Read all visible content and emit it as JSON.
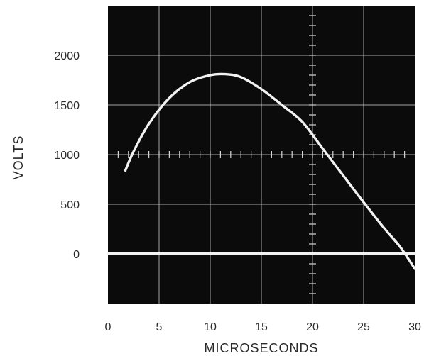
{
  "chart_data": {
    "type": "line",
    "xlabel": "MICROSECONDS",
    "ylabel": "VOLTS",
    "xlim": [
      0,
      30
    ],
    "ylim": [
      -500,
      2500
    ],
    "x_ticks": [
      0,
      5,
      10,
      15,
      20,
      25,
      30
    ],
    "y_ticks": [
      0,
      500,
      1000,
      1500,
      2000
    ],
    "grid": true,
    "series": [
      {
        "name": "",
        "x": [
          1.7,
          2.5,
          4,
          6,
          8,
          10,
          11.5,
          13,
          15,
          17,
          19,
          21,
          23,
          25,
          27,
          28.5,
          29.5,
          30
        ],
        "y": [
          840,
          1030,
          1310,
          1570,
          1730,
          1800,
          1810,
          1780,
          1660,
          1500,
          1330,
          1060,
          790,
          520,
          260,
          80,
          -70,
          -150
        ]
      },
      {
        "name": "",
        "x": [
          0,
          30
        ],
        "y": [
          0,
          0
        ]
      }
    ]
  },
  "colors": {
    "screen": "#0b0b0b",
    "grid": "#d6d6d6",
    "trace": "#f2f2f2",
    "text": "#2a2a2a"
  }
}
